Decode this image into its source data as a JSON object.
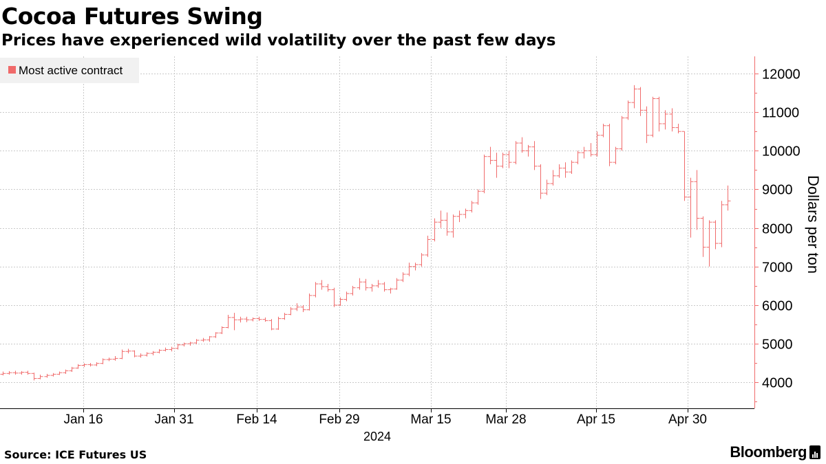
{
  "header": {
    "title": "Cocoa Futures Swing",
    "subtitle": "Prices have experienced wild volatility over the past few days"
  },
  "legend": {
    "label": "Most active contract",
    "color": "#f06a6a"
  },
  "footer": {
    "source": "Source: ICE Futures US",
    "brand": "Bloomberg"
  },
  "chart_data": {
    "type": "ohlc",
    "title": "Cocoa Futures Swing",
    "subtitle": "Prices have experienced wild volatility over the past few days",
    "ylabel": "Dollars per ton",
    "xlabel": "2024",
    "ylim": [
      3300,
      12500
    ],
    "yticks": [
      4000,
      5000,
      6000,
      7000,
      8000,
      9000,
      10000,
      11000,
      12000
    ],
    "x_tick_labels": [
      "Jan 16",
      "Jan 31",
      "Feb 14",
      "Feb 29",
      "Mar 15",
      "Mar 28",
      "Apr 15",
      "Apr 30"
    ],
    "year_label": "2024",
    "series_name": "Most active contract",
    "color": "#f06a6a",
    "grid": true,
    "ohlc": [
      [
        4210,
        4280,
        4180,
        4230
      ],
      [
        4230,
        4290,
        4200,
        4250
      ],
      [
        4250,
        4300,
        4200,
        4240
      ],
      [
        4240,
        4290,
        4200,
        4260
      ],
      [
        4260,
        4300,
        4200,
        4230
      ],
      [
        4230,
        4250,
        4050,
        4100
      ],
      [
        4100,
        4200,
        4080,
        4150
      ],
      [
        4150,
        4220,
        4120,
        4180
      ],
      [
        4180,
        4240,
        4150,
        4210
      ],
      [
        4210,
        4280,
        4190,
        4250
      ],
      [
        4250,
        4330,
        4220,
        4300
      ],
      [
        4300,
        4400,
        4270,
        4370
      ],
      [
        4370,
        4470,
        4350,
        4440
      ],
      [
        4440,
        4490,
        4400,
        4460
      ],
      [
        4460,
        4500,
        4410,
        4450
      ],
      [
        4450,
        4520,
        4420,
        4490
      ],
      [
        4490,
        4620,
        4470,
        4590
      ],
      [
        4590,
        4640,
        4550,
        4600
      ],
      [
        4600,
        4680,
        4560,
        4620
      ],
      [
        4620,
        4850,
        4600,
        4800
      ],
      [
        4800,
        4870,
        4750,
        4810
      ],
      [
        4810,
        4830,
        4650,
        4680
      ],
      [
        4680,
        4750,
        4640,
        4700
      ],
      [
        4700,
        4780,
        4670,
        4750
      ],
      [
        4750,
        4810,
        4700,
        4780
      ],
      [
        4780,
        4860,
        4750,
        4830
      ],
      [
        4830,
        4900,
        4800,
        4850
      ],
      [
        4850,
        4920,
        4800,
        4880
      ],
      [
        4880,
        5000,
        4850,
        4970
      ],
      [
        4970,
        5030,
        4930,
        5000
      ],
      [
        5000,
        5050,
        4950,
        5020
      ],
      [
        5020,
        5120,
        4990,
        5090
      ],
      [
        5090,
        5150,
        5050,
        5100
      ],
      [
        5100,
        5200,
        5050,
        5180
      ],
      [
        5180,
        5300,
        5150,
        5280
      ],
      [
        5280,
        5450,
        5250,
        5420
      ],
      [
        5420,
        5750,
        5400,
        5680
      ],
      [
        5680,
        5800,
        5350,
        5620
      ],
      [
        5620,
        5700,
        5550,
        5640
      ],
      [
        5640,
        5700,
        5560,
        5620
      ],
      [
        5620,
        5680,
        5580,
        5650
      ],
      [
        5650,
        5700,
        5590,
        5630
      ],
      [
        5630,
        5680,
        5570,
        5600
      ],
      [
        5600,
        5640,
        5350,
        5380
      ],
      [
        5380,
        5700,
        5360,
        5650
      ],
      [
        5650,
        5800,
        5620,
        5760
      ],
      [
        5760,
        5950,
        5740,
        5900
      ],
      [
        5900,
        6050,
        5850,
        5950
      ],
      [
        5950,
        6000,
        5820,
        5880
      ],
      [
        5880,
        6300,
        5860,
        6250
      ],
      [
        6250,
        6600,
        6200,
        6550
      ],
      [
        6550,
        6650,
        6400,
        6480
      ],
      [
        6480,
        6550,
        6350,
        6400
      ],
      [
        6400,
        6450,
        5950,
        6000
      ],
      [
        6000,
        6200,
        5980,
        6150
      ],
      [
        6150,
        6350,
        6100,
        6300
      ],
      [
        6300,
        6500,
        6250,
        6450
      ],
      [
        6450,
        6700,
        6400,
        6600
      ],
      [
        6600,
        6680,
        6380,
        6450
      ],
      [
        6450,
        6550,
        6350,
        6500
      ],
      [
        6500,
        6650,
        6450,
        6550
      ],
      [
        6550,
        6600,
        6350,
        6400
      ],
      [
        6400,
        6450,
        6300,
        6420
      ],
      [
        6420,
        6700,
        6400,
        6650
      ],
      [
        6650,
        6850,
        6600,
        6800
      ],
      [
        6800,
        7100,
        6750,
        7000
      ],
      [
        7000,
        7100,
        6900,
        7050
      ],
      [
        7050,
        7350,
        7000,
        7300
      ],
      [
        7300,
        7800,
        7250,
        7700
      ],
      [
        7700,
        8250,
        7650,
        8150
      ],
      [
        8150,
        8450,
        8000,
        8200
      ],
      [
        8200,
        8400,
        7800,
        7900
      ],
      [
        7900,
        8350,
        7750,
        8300
      ],
      [
        8300,
        8450,
        8150,
        8350
      ],
      [
        8350,
        8500,
        8250,
        8450
      ],
      [
        8450,
        8700,
        8400,
        8650
      ],
      [
        8650,
        9000,
        8600,
        8950
      ],
      [
        8950,
        9900,
        8900,
        9850
      ],
      [
        9850,
        10100,
        9650,
        9750
      ],
      [
        9750,
        9950,
        9300,
        9600
      ],
      [
        9600,
        9950,
        9550,
        9900
      ],
      [
        9900,
        10000,
        9550,
        9700
      ],
      [
        9700,
        10250,
        9650,
        10200
      ],
      [
        10200,
        10350,
        9950,
        10000
      ],
      [
        10000,
        10150,
        9850,
        10100
      ],
      [
        10100,
        10250,
        9500,
        9600
      ],
      [
        9600,
        9650,
        8750,
        8900
      ],
      [
        8900,
        9250,
        8850,
        9150
      ],
      [
        9150,
        9500,
        9100,
        9350
      ],
      [
        9350,
        9650,
        9300,
        9550
      ],
      [
        9550,
        9700,
        9300,
        9450
      ],
      [
        9450,
        9750,
        9400,
        9700
      ],
      [
        9700,
        10000,
        9650,
        9950
      ],
      [
        9950,
        10100,
        9800,
        10000
      ],
      [
        10000,
        10200,
        9850,
        9900
      ],
      [
        9900,
        10500,
        9850,
        10400
      ],
      [
        10400,
        10700,
        10350,
        10650
      ],
      [
        10650,
        10700,
        9600,
        9700
      ],
      [
        9700,
        10100,
        9650,
        10050
      ],
      [
        10050,
        10900,
        10000,
        10850
      ],
      [
        10850,
        11300,
        10800,
        11250
      ],
      [
        11250,
        11700,
        11100,
        11600
      ],
      [
        11600,
        11650,
        10900,
        11050
      ],
      [
        11050,
        11150,
        10200,
        10400
      ],
      [
        10400,
        11400,
        10350,
        11350
      ],
      [
        11350,
        11400,
        10500,
        10700
      ],
      [
        10700,
        11050,
        10550,
        10950
      ],
      [
        10950,
        11100,
        10500,
        10600
      ],
      [
        10600,
        10700,
        10450,
        10500
      ],
      [
        10500,
        10500,
        8700,
        8800
      ],
      [
        8800,
        9300,
        7750,
        9200
      ],
      [
        9200,
        9500,
        7950,
        8250
      ],
      [
        8250,
        8300,
        7250,
        7500
      ],
      [
        7500,
        8200,
        7000,
        8150
      ],
      [
        8150,
        8200,
        7450,
        7600
      ],
      [
        7600,
        8700,
        7500,
        8600
      ],
      [
        8600,
        9100,
        8450,
        8700
      ]
    ]
  }
}
